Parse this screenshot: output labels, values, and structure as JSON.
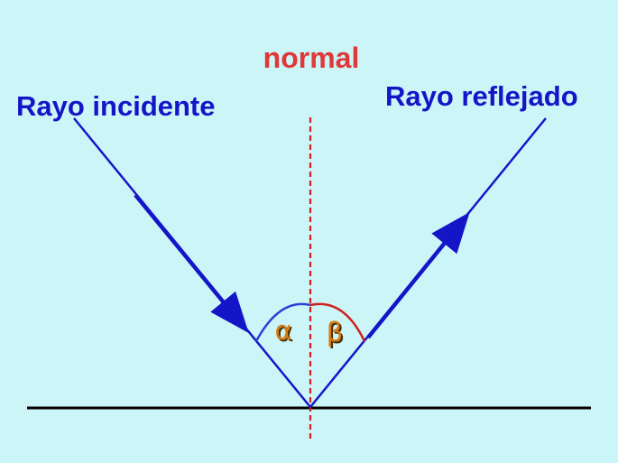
{
  "colors": {
    "background": "#ccf5f8",
    "ray": "#1515c8",
    "normal_line": "#d02020",
    "normal_label": "#e03838",
    "surface": "#000000",
    "arc_alpha": "#2a3fd8",
    "arc_beta": "#d02020",
    "angle_label": "#d97a10",
    "angle_shadow": "#4a3000"
  },
  "labels": {
    "normal": "normal",
    "incident_ray": "Rayo incidente",
    "reflected_ray": "Rayo reflejado",
    "alpha": "α",
    "beta": "β"
  }
}
